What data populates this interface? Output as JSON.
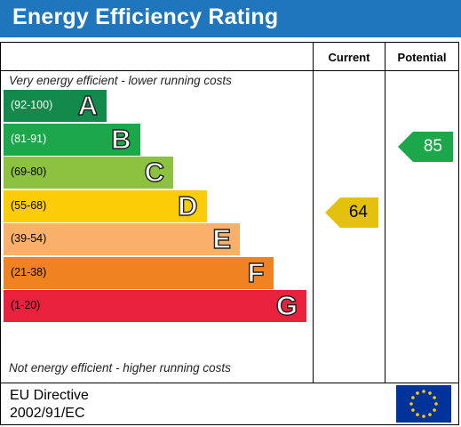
{
  "header": {
    "title": "Energy Efficiency Rating"
  },
  "columns": {
    "current": "Current",
    "potential": "Potential"
  },
  "notes": {
    "top": "Very energy efficient - lower running costs",
    "bottom": "Not energy efficient - higher running costs"
  },
  "bands": [
    {
      "range": "(92-100)",
      "letter": "A",
      "color": "#138a4b",
      "text_color": "#ffffff"
    },
    {
      "range": "(81-91)",
      "letter": "B",
      "color": "#1ba74a",
      "text_color": "#ffffff"
    },
    {
      "range": "(69-80)",
      "letter": "C",
      "color": "#8cc23f",
      "text_color": "#000000"
    },
    {
      "range": "(55-68)",
      "letter": "D",
      "color": "#fccc06",
      "text_color": "#000000"
    },
    {
      "range": "(39-54)",
      "letter": "E",
      "color": "#f9b06b",
      "text_color": "#000000"
    },
    {
      "range": "(21-38)",
      "letter": "F",
      "color": "#f08221",
      "text_color": "#000000"
    },
    {
      "range": "(1-20)",
      "letter": "G",
      "color": "#e8223c",
      "text_color": "#000000"
    }
  ],
  "current": {
    "value": "64",
    "band": "D",
    "color": "#e3c10e"
  },
  "potential": {
    "value": "85",
    "band": "B",
    "color": "#1ba74a"
  },
  "footer": {
    "line1": "EU Directive",
    "line2": "2002/91/EC"
  },
  "icons": {
    "flag": "eu-flag-icon"
  }
}
